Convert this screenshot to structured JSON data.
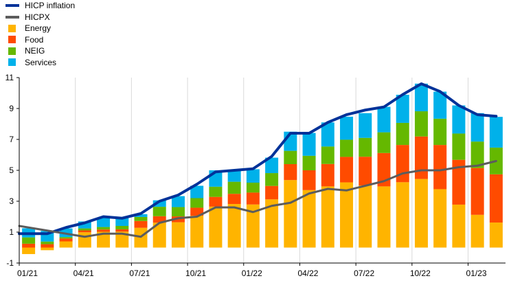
{
  "chart_data": {
    "type": "bar",
    "stacked": true,
    "title": "",
    "xlabel": "",
    "ylabel": "",
    "ylim": [
      -1,
      11
    ],
    "y_ticks": [
      -1,
      1,
      3,
      5,
      7,
      9,
      11
    ],
    "grid": "vertical",
    "legend_position": "top-left",
    "categories": [
      "01/21",
      "02/21",
      "03/21",
      "04/21",
      "05/21",
      "06/21",
      "07/21",
      "08/21",
      "09/21",
      "10/21",
      "11/21",
      "12/21",
      "01/22",
      "02/22",
      "03/22",
      "04/22",
      "05/22",
      "06/22",
      "07/22",
      "08/22",
      "09/22",
      "10/22",
      "11/22",
      "12/22",
      "01/23",
      "02/23"
    ],
    "x_tick_labels": [
      "01/21",
      "04/21",
      "07/21",
      "10/21",
      "01/22",
      "04/22",
      "07/22",
      "10/22",
      "01/23"
    ],
    "bar_series": [
      {
        "name": "Energy",
        "color": "#ffb400",
        "values": [
          -0.42,
          -0.17,
          0.4,
          0.99,
          1.02,
          1.03,
          1.28,
          1.61,
          1.64,
          2.06,
          2.65,
          2.82,
          2.79,
          3.12,
          4.37,
          3.72,
          3.96,
          4.22,
          4.02,
          3.96,
          4.23,
          4.44,
          3.78,
          2.78,
          2.12,
          1.62
        ]
      },
      {
        "name": "Food",
        "color": "#ff4b00",
        "values": [
          0.25,
          0.22,
          0.19,
          0.12,
          0.15,
          0.15,
          0.44,
          0.42,
          0.38,
          0.52,
          0.63,
          0.66,
          0.77,
          0.87,
          1.03,
          1.28,
          1.45,
          1.65,
          1.86,
          2.16,
          2.41,
          2.75,
          2.86,
          2.9,
          3.03,
          3.12
        ]
      },
      {
        "name": "NEIG",
        "color": "#65b800",
        "values": [
          0.41,
          0.17,
          0.09,
          0.13,
          0.16,
          0.22,
          0.26,
          0.61,
          0.6,
          0.62,
          0.66,
          0.78,
          0.64,
          0.83,
          0.86,
          0.94,
          1.13,
          1.11,
          1.22,
          1.34,
          1.43,
          1.63,
          1.7,
          1.7,
          1.71,
          1.73
        ]
      },
      {
        "name": "Services",
        "color": "#00b1ea",
        "values": [
          0.59,
          0.69,
          0.56,
          0.45,
          0.6,
          0.55,
          0.18,
          0.42,
          0.71,
          0.8,
          1.06,
          0.74,
          0.87,
          1.0,
          1.24,
          1.48,
          1.56,
          1.49,
          1.6,
          1.65,
          1.82,
          1.79,
          1.75,
          1.82,
          1.84,
          1.99
        ]
      }
    ],
    "line_series": [
      {
        "name": "HICP inflation",
        "color": "#003299",
        "width": 4,
        "values": [
          0.9,
          0.9,
          1.3,
          1.6,
          2.0,
          1.9,
          2.2,
          3.0,
          3.4,
          4.1,
          4.9,
          5.0,
          5.1,
          5.9,
          7.4,
          7.4,
          8.1,
          8.6,
          8.9,
          9.1,
          9.9,
          10.6,
          10.1,
          9.2,
          8.6,
          8.5
        ]
      },
      {
        "name": "HICPX",
        "color": "#5c5c5c",
        "width": 3,
        "values": [
          1.4,
          1.1,
          0.9,
          0.7,
          0.9,
          0.9,
          0.7,
          1.6,
          1.9,
          2.0,
          2.6,
          2.6,
          2.3,
          2.7,
          2.9,
          3.5,
          3.8,
          3.7,
          4.0,
          4.3,
          4.8,
          5.0,
          5.0,
          5.2,
          5.3,
          5.6
        ]
      }
    ]
  },
  "legend": [
    {
      "label": "HICP inflation",
      "kind": "line",
      "color": "#003299"
    },
    {
      "label": "HICPX",
      "kind": "line",
      "color": "#5c5c5c"
    },
    {
      "label": "Energy",
      "kind": "box",
      "color": "#ffb400"
    },
    {
      "label": "Food",
      "kind": "box",
      "color": "#ff4b00"
    },
    {
      "label": "NEIG",
      "kind": "box",
      "color": "#65b800"
    },
    {
      "label": "Services",
      "kind": "box",
      "color": "#00b1ea"
    }
  ]
}
